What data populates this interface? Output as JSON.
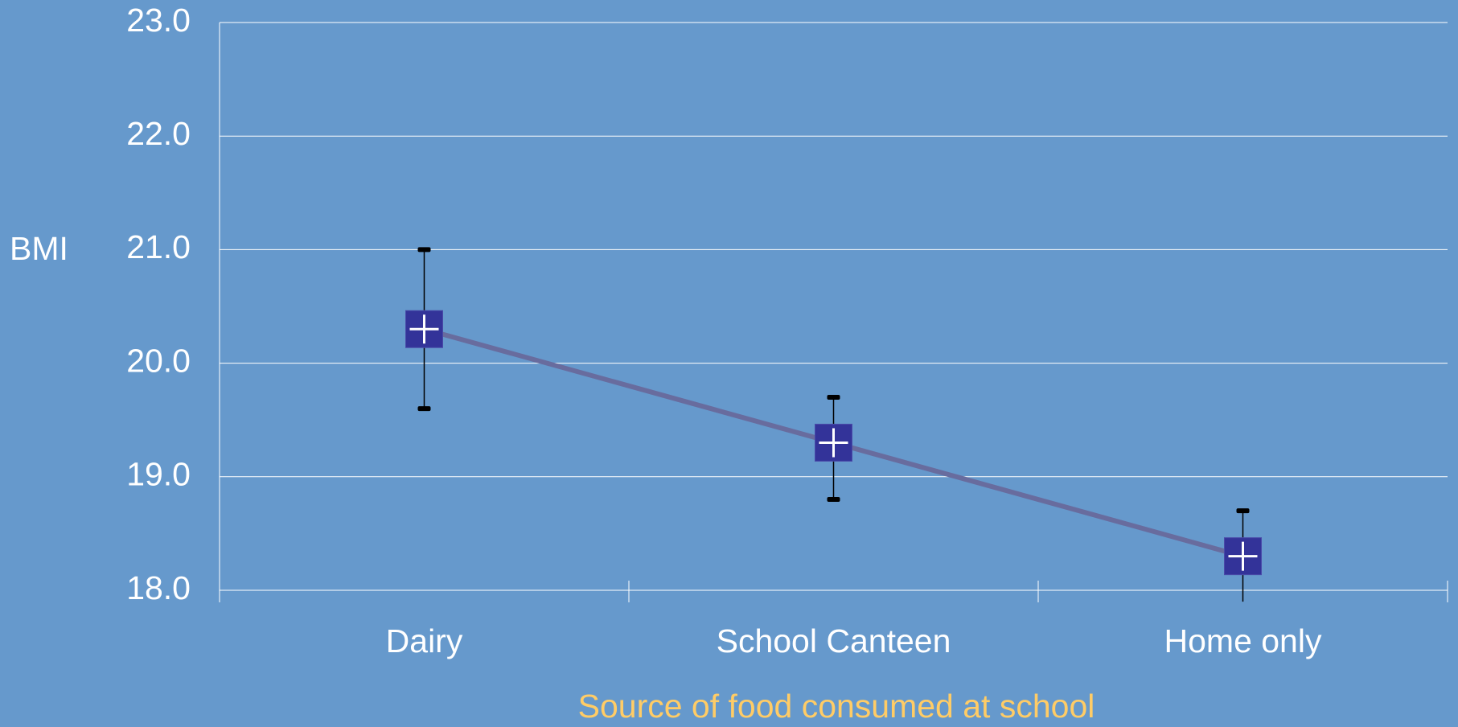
{
  "chart_data": {
    "type": "line",
    "y_label": "BMI",
    "x_label": "Source of food consumed at school",
    "categories": [
      "Dairy",
      "School Canteen",
      "Home only"
    ],
    "series": [
      {
        "values": [
          20.3,
          19.3,
          18.3
        ],
        "color": "#686c9e",
        "marker_color": "#333399",
        "errors_low": [
          0.7,
          0.5,
          0.4
        ],
        "errors_high": [
          0.7,
          0.4,
          0.4
        ]
      }
    ],
    "ylim": [
      18,
      23
    ],
    "yticks": [
      {
        "value": 18,
        "label": "18.0"
      },
      {
        "value": 19,
        "label": "19.0"
      },
      {
        "value": 20,
        "label": "20.0"
      },
      {
        "value": 21,
        "label": "21.0"
      },
      {
        "value": 22,
        "label": "22.0"
      },
      {
        "value": 23,
        "label": "23.0"
      }
    ],
    "grid": true
  }
}
